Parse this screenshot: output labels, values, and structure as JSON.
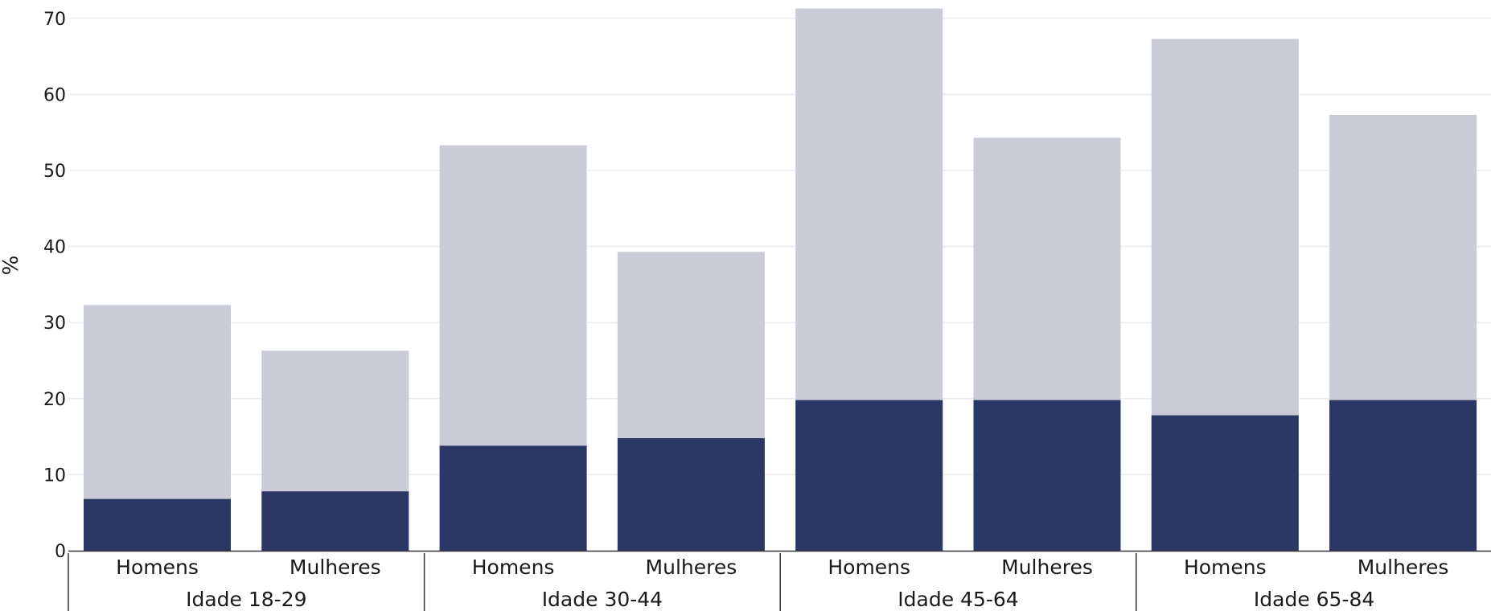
{
  "chart_data": {
    "type": "bar",
    "stacked": false,
    "overlay": true,
    "ylabel": "%",
    "ylim": [
      0,
      72
    ],
    "yticks": [
      0,
      10,
      20,
      30,
      40,
      50,
      60,
      70
    ],
    "grid": true,
    "categories": [
      "Homens",
      "Mulheres",
      "Homens",
      "Mulheres",
      "Homens",
      "Mulheres",
      "Homens",
      "Mulheres"
    ],
    "groups": [
      "Idade 18-29",
      "Idade 30-44",
      "Idade 45-64",
      "Idade 65-84"
    ],
    "series": [
      {
        "color": "#c9cbd7",
        "values": [
          32.3,
          26.3,
          53.3,
          39.3,
          71.3,
          54.3,
          67.3,
          57.3
        ]
      },
      {
        "color": "#2b3765",
        "values": [
          6.8,
          7.8,
          13.8,
          14.8,
          19.8,
          19.8,
          17.8,
          19.8
        ]
      }
    ]
  }
}
